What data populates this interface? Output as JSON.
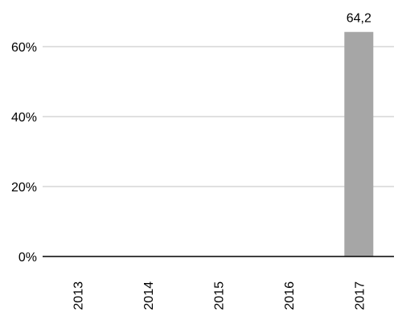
{
  "chart_data": {
    "type": "bar",
    "categories": [
      "2013",
      "2014",
      "2015",
      "2016",
      "2017"
    ],
    "values": [
      null,
      null,
      null,
      null,
      64.2
    ],
    "data_labels": [
      "",
      "",
      "",
      "",
      "64,2"
    ],
    "ylim": [
      0,
      70
    ],
    "yticks": [
      0,
      20,
      40,
      60
    ],
    "ytick_labels": [
      "0%",
      "20%",
      "40%",
      "60%"
    ],
    "grid": true,
    "bar_color": "#a6a6a6",
    "grid_color": "#c0c0c0",
    "axis_color": "#000000"
  }
}
